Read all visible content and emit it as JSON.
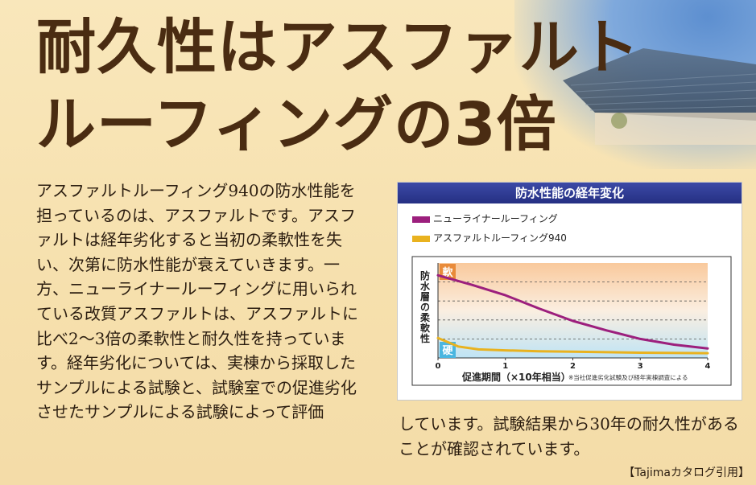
{
  "headline": {
    "line1": "耐久性はアスファルト",
    "line2": "ルーフィングの3倍"
  },
  "body": {
    "col1": "アスファルトルーフィング940の防水性能を担っているのは、アスファルトです。アスファルトは経年劣化すると当初の柔軟性を失い、次第に防水性能が衰えていきます。一方、ニューライナールーフィングに用いられている改質アスファルトは、アスファルトに比べ2〜3倍の柔軟性と耐久性を持っています。経年劣化については、実棟から採取したサンプルによる試験と、試験室での促進劣化させたサンプルによる試験によって評価",
    "col2": "しています。試験結果から30年の耐久性があることが確認されています。"
  },
  "credit": "【Tajimaカタログ引用】",
  "colors": {
    "headline": "#4a2c12",
    "series_magenta": "#9c1f7d",
    "series_yellow": "#e9b21f",
    "chart_header": "#2b3690"
  },
  "chart_data": {
    "type": "line",
    "title": "防水性能の経年変化",
    "xlabel": "促進期間（×10年相当）",
    "ylabel": "防水層の柔軟性",
    "y_top_label": "軟",
    "y_bottom_label": "硬",
    "footnote": "※当社促進劣化試験及び経年実棟調査による",
    "x_ticks": [
      "0",
      "1",
      "2",
      "3",
      "4"
    ],
    "xlim": [
      0,
      4
    ],
    "ylim": [
      0,
      1
    ],
    "series": [
      {
        "name": "ニューライナールーフィング",
        "color": "#9c1f7d",
        "x": [
          0,
          0.5,
          1,
          1.5,
          2,
          2.5,
          3,
          3.5,
          4
        ],
        "y": [
          0.87,
          0.77,
          0.66,
          0.52,
          0.39,
          0.29,
          0.2,
          0.14,
          0.1
        ]
      },
      {
        "name": "アスファルトルーフィング940",
        "color": "#e9b21f",
        "x": [
          0,
          0.3,
          0.6,
          1,
          1.5,
          2,
          3,
          4
        ],
        "y": [
          0.21,
          0.12,
          0.09,
          0.08,
          0.07,
          0.065,
          0.055,
          0.05
        ]
      }
    ]
  }
}
